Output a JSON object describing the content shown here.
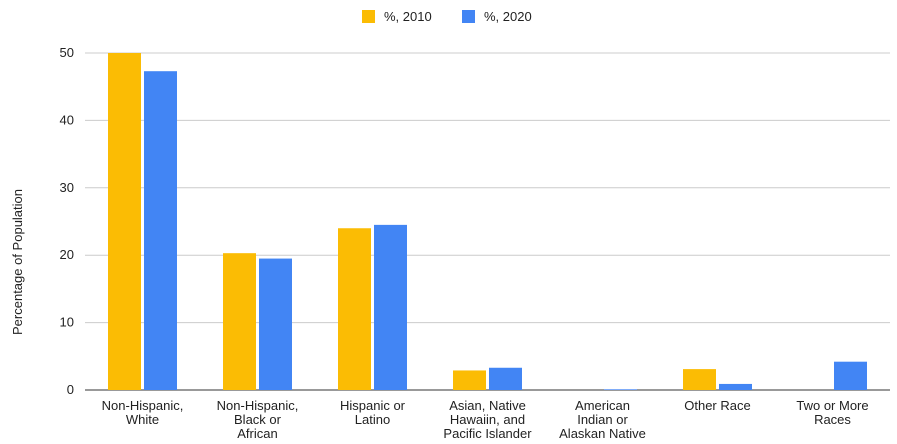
{
  "chart_data": {
    "type": "bar",
    "categories": [
      [
        "Non-Hispanic,",
        "White"
      ],
      [
        "Non-Hispanic,",
        "Black or",
        "African"
      ],
      [
        "Hispanic or",
        "Latino"
      ],
      [
        "Asian, Native",
        "Hawaiin, and",
        "Pacific Islander"
      ],
      [
        "American",
        "Indian or",
        "Alaskan Native"
      ],
      [
        "Other Race"
      ],
      [
        "Two or More",
        "Races"
      ]
    ],
    "series": [
      {
        "name": "%, 2010",
        "color": "#fbbc04",
        "values": [
          50.0,
          20.3,
          24.0,
          2.9,
          0.0,
          3.1,
          0.0
        ]
      },
      {
        "name": "%, 2020",
        "color": "#4285f4",
        "values": [
          47.3,
          19.5,
          24.5,
          3.3,
          0.1,
          0.9,
          4.2
        ]
      }
    ],
    "ylabel": "Percentage of Population",
    "xlabel": "",
    "ylim": [
      0,
      50
    ],
    "yticks": [
      "0",
      "10",
      "20",
      "30",
      "40",
      "50"
    ],
    "legend_position": "top",
    "grid": true
  }
}
